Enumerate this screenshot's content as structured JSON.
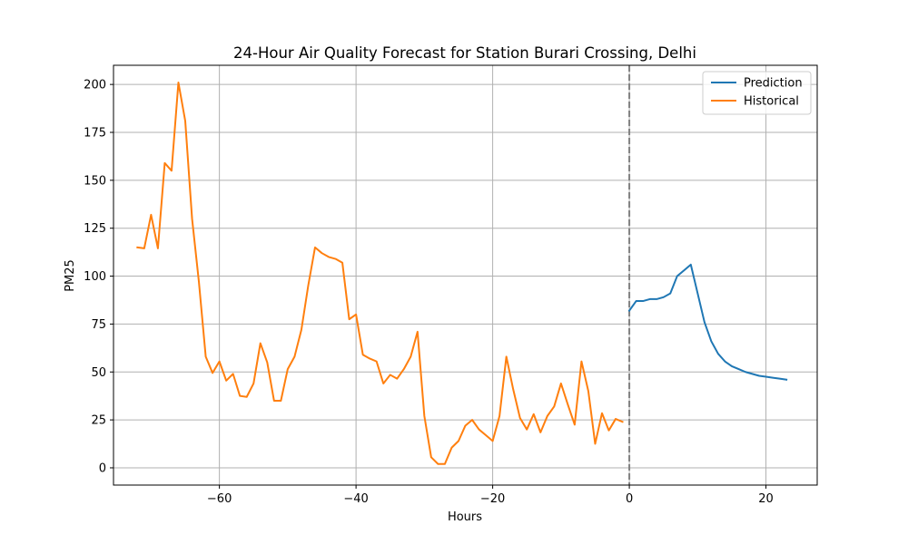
{
  "chart_data": {
    "type": "line",
    "title": "24-Hour Air Quality Forecast for Station Burari Crossing, Delhi",
    "xlabel": "Hours",
    "ylabel": "PM25",
    "xlim": [
      -75.5,
      27.5
    ],
    "ylim": [
      -9,
      210
    ],
    "xticks": [
      -60,
      -40,
      -20,
      0,
      20
    ],
    "xtick_labels": [
      "−60",
      "−40",
      "−20",
      "0",
      "20"
    ],
    "yticks": [
      0,
      25,
      50,
      75,
      100,
      125,
      150,
      175,
      200
    ],
    "ytick_labels": [
      "0",
      "25",
      "50",
      "75",
      "100",
      "125",
      "150",
      "175",
      "200"
    ],
    "grid": true,
    "legend_position": "top-right",
    "vline": {
      "x": 0,
      "style": "dashed",
      "color": "#808080"
    },
    "series": [
      {
        "name": "Prediction",
        "color": "#1f77b4",
        "x": [
          0,
          1,
          2,
          3,
          4,
          5,
          6,
          7,
          8,
          9,
          10,
          11,
          12,
          13,
          14,
          15,
          16,
          17,
          18,
          19,
          20,
          21,
          22,
          23
        ],
        "y": [
          82,
          87,
          87,
          88,
          88,
          89,
          91,
          100,
          103,
          106,
          91,
          76,
          66,
          59.5,
          55.5,
          53,
          51.5,
          50,
          49,
          48,
          47.5,
          47,
          46.5,
          46
        ]
      },
      {
        "name": "Historical",
        "color": "#ff7f0e",
        "x": [
          -72,
          -71,
          -70,
          -69,
          -68,
          -67,
          -66,
          -65,
          -64,
          -63,
          -62,
          -61,
          -60,
          -59,
          -58,
          -57,
          -56,
          -55,
          -54,
          -53,
          -52,
          -51,
          -50,
          -49,
          -48,
          -47,
          -46,
          -45,
          -44,
          -43,
          -42,
          -41,
          -40,
          -39,
          -38,
          -37,
          -36,
          -35,
          -34,
          -33,
          -32,
          -31,
          -30,
          -29,
          -28,
          -27,
          -26,
          -25,
          -24,
          -23,
          -22,
          -21,
          -20,
          -19,
          -18,
          -17,
          -16,
          -15,
          -14,
          -13,
          -12,
          -11,
          -10,
          -9,
          -8,
          -7,
          -6,
          -5,
          -4,
          -3,
          -2,
          -1
        ],
        "y": [
          115,
          114.5,
          132,
          114.5,
          159,
          155,
          201,
          181,
          130,
          97,
          58,
          49.5,
          55.5,
          45.5,
          49,
          37.5,
          37,
          44,
          65,
          55,
          35,
          35,
          51.5,
          58,
          72,
          95,
          115,
          112,
          110,
          109,
          107,
          77.5,
          80,
          59,
          57,
          55.5,
          44,
          48.5,
          46.5,
          51.5,
          58,
          71,
          27,
          5.5,
          2,
          2,
          10.5,
          14,
          22,
          25,
          20,
          17,
          14,
          27,
          58,
          41,
          26,
          20,
          28,
          18.5,
          27,
          32,
          44,
          33,
          22.5,
          55.5,
          40,
          12.5,
          28.5,
          19.5,
          25.5,
          24
        ]
      }
    ]
  }
}
